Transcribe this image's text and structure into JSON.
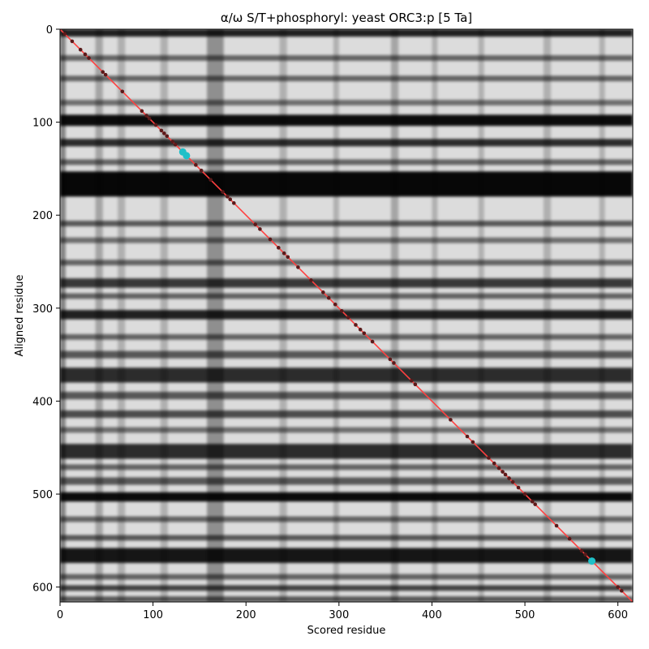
{
  "chart_data": {
    "type": "heatmap",
    "title": "α/ω S/T+phosphoryl: yeast ORC3:p [5 Ta]",
    "xlabel": "Scored residue",
    "ylabel": "Aligned residue",
    "xlim": [
      0,
      616
    ],
    "ylim": [
      616,
      0
    ],
    "xticks": [
      0,
      100,
      200,
      300,
      400,
      500,
      600
    ],
    "yticks": [
      0,
      100,
      200,
      300,
      400,
      500,
      600
    ],
    "colormap": "grayscale",
    "diagonal_line_color": "#ff4040",
    "point_color": "#5a1a1a",
    "highlight_color": "#20c0c8",
    "dark_bands_y": [
      [
        0,
        8,
        0.85
      ],
      [
        28,
        34,
        0.55
      ],
      [
        50,
        56,
        0.55
      ],
      [
        76,
        82,
        0.5
      ],
      [
        92,
        104,
        0.95
      ],
      [
        118,
        126,
        0.8
      ],
      [
        140,
        146,
        0.55
      ],
      [
        153,
        180,
        0.97
      ],
      [
        206,
        212,
        0.6
      ],
      [
        224,
        230,
        0.5
      ],
      [
        248,
        254,
        0.55
      ],
      [
        268,
        278,
        0.75
      ],
      [
        284,
        290,
        0.55
      ],
      [
        302,
        312,
        0.85
      ],
      [
        328,
        334,
        0.55
      ],
      [
        346,
        354,
        0.6
      ],
      [
        364,
        380,
        0.8
      ],
      [
        390,
        398,
        0.6
      ],
      [
        410,
        418,
        0.65
      ],
      [
        428,
        434,
        0.5
      ],
      [
        446,
        462,
        0.8
      ],
      [
        468,
        474,
        0.55
      ],
      [
        482,
        490,
        0.6
      ],
      [
        498,
        508,
        0.95
      ],
      [
        524,
        530,
        0.55
      ],
      [
        544,
        550,
        0.6
      ],
      [
        558,
        574,
        0.9
      ],
      [
        586,
        592,
        0.55
      ],
      [
        598,
        604,
        0.7
      ],
      [
        610,
        616,
        0.6
      ]
    ],
    "dark_bands_x": [
      [
        0,
        6,
        0.4
      ],
      [
        38,
        46,
        0.25
      ],
      [
        62,
        70,
        0.2
      ],
      [
        108,
        116,
        0.2
      ],
      [
        158,
        176,
        0.35
      ],
      [
        236,
        244,
        0.2
      ],
      [
        294,
        300,
        0.2
      ],
      [
        356,
        364,
        0.25
      ],
      [
        400,
        406,
        0.2
      ],
      [
        450,
        456,
        0.2
      ],
      [
        520,
        528,
        0.2
      ],
      [
        580,
        586,
        0.2
      ]
    ],
    "points": [
      [
        5,
        5
      ],
      [
        13,
        13
      ],
      [
        22,
        22
      ],
      [
        27,
        27
      ],
      [
        31,
        31
      ],
      [
        46,
        46
      ],
      [
        49,
        49
      ],
      [
        67,
        67
      ],
      [
        88,
        88
      ],
      [
        93,
        93
      ],
      [
        96,
        96
      ],
      [
        103,
        103
      ],
      [
        109,
        109
      ],
      [
        112,
        112
      ],
      [
        115,
        115
      ],
      [
        121,
        121
      ],
      [
        124,
        124
      ],
      [
        146,
        146
      ],
      [
        152,
        152
      ],
      [
        162,
        162
      ],
      [
        175,
        175
      ],
      [
        180,
        180
      ],
      [
        183,
        183
      ],
      [
        187,
        187
      ],
      [
        210,
        210
      ],
      [
        215,
        215
      ],
      [
        226,
        226
      ],
      [
        235,
        235
      ],
      [
        241,
        241
      ],
      [
        245,
        245
      ],
      [
        256,
        256
      ],
      [
        270,
        270
      ],
      [
        283,
        283
      ],
      [
        289,
        289
      ],
      [
        296,
        296
      ],
      [
        303,
        303
      ],
      [
        310,
        310
      ],
      [
        318,
        318
      ],
      [
        323,
        323
      ],
      [
        327,
        327
      ],
      [
        336,
        336
      ],
      [
        355,
        355
      ],
      [
        359,
        359
      ],
      [
        378,
        378
      ],
      [
        382,
        382
      ],
      [
        420,
        420
      ],
      [
        438,
        438
      ],
      [
        444,
        444
      ],
      [
        461,
        461
      ],
      [
        467,
        467
      ],
      [
        472,
        472
      ],
      [
        476,
        476
      ],
      [
        479,
        479
      ],
      [
        483,
        483
      ],
      [
        487,
        487
      ],
      [
        493,
        493
      ],
      [
        500,
        500
      ],
      [
        508,
        508
      ],
      [
        511,
        511
      ],
      [
        534,
        534
      ],
      [
        548,
        548
      ],
      [
        561,
        561
      ],
      [
        565,
        565
      ],
      [
        600,
        600
      ],
      [
        604,
        604
      ]
    ],
    "highlight_points": [
      [
        132,
        132
      ],
      [
        136,
        136
      ],
      [
        572,
        572
      ]
    ]
  }
}
